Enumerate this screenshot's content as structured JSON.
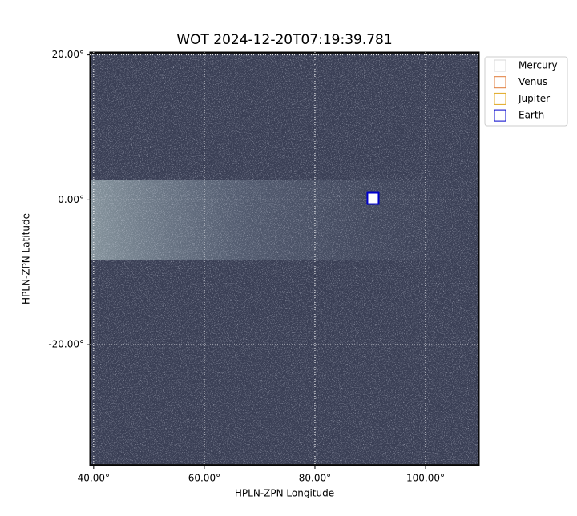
{
  "chart_data": {
    "type": "image",
    "title": "WOT 2024-12-20T07:19:39.781",
    "x_label": "HPLN-ZPN Longitude",
    "y_label": "HPLN-ZPN Latitude",
    "xlim": [
      39.3,
      109.7
    ],
    "ylim": [
      -36.7,
      20.4
    ],
    "xticks": [
      {
        "value": 40,
        "label": "40.00°"
      },
      {
        "value": 60,
        "label": "60.00°"
      },
      {
        "value": 80,
        "label": "80.00°"
      },
      {
        "value": 100,
        "label": "100.00°"
      }
    ],
    "yticks": [
      {
        "value": 20,
        "label": "20.00°"
      },
      {
        "value": 0,
        "label": "0.00°"
      },
      {
        "value": -20,
        "label": "-20.00°"
      }
    ],
    "grid": true,
    "legend": "upper right outside",
    "series": [
      {
        "name": "Mercury",
        "color": "#d8d8d8"
      },
      {
        "name": "Venus",
        "color": "#e07b39"
      },
      {
        "name": "Jupiter",
        "color": "#e0a820"
      },
      {
        "name": "Earth",
        "color": "#0000cc",
        "x": 90.5,
        "y": 0.2
      }
    ]
  }
}
